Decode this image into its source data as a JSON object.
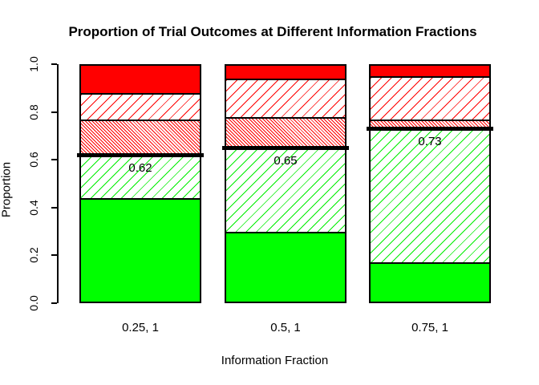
{
  "chart_data": {
    "type": "bar",
    "stacked": true,
    "title": "Proportion of Trial Outcomes at Different Information Fractions",
    "xlabel": "Information Fraction",
    "ylabel": "Proportion",
    "ylim": [
      0,
      1
    ],
    "yticks": [
      "0.0",
      "0.2",
      "0.4",
      "0.6",
      "0.8",
      "1.0"
    ],
    "grid": false,
    "legend": "none",
    "categories": [
      "0.25, 1",
      "0.5, 1",
      "0.75, 1"
    ],
    "series": [
      {
        "name": "solid-green-segment",
        "pattern": "solid",
        "color": "#00FF00",
        "values": [
          0.44,
          0.3,
          0.17
        ]
      },
      {
        "name": "green-hatch-segment",
        "pattern": "diag-up-sparse",
        "color": "#00EE00",
        "values": [
          0.18,
          0.35,
          0.56
        ]
      },
      {
        "name": "red-dense-hatch-segment",
        "pattern": "diag-down-dense",
        "color": "#FF0000",
        "values": [
          0.15,
          0.13,
          0.04
        ]
      },
      {
        "name": "red-hatch-segment",
        "pattern": "diag-up-sparse",
        "color": "#FF0000",
        "values": [
          0.11,
          0.16,
          0.18
        ]
      },
      {
        "name": "solid-red-segment",
        "pattern": "solid",
        "color": "#FF0000",
        "values": [
          0.12,
          0.06,
          0.05
        ]
      }
    ],
    "threshold_lines": {
      "color": "#000000",
      "values": [
        0.62,
        0.65,
        0.73
      ],
      "labels": [
        "0.62",
        "0.65",
        "0.73"
      ]
    },
    "colors": {
      "background": "#FFFFFF",
      "axis": "#000000",
      "text": "#000000",
      "green": "#00FF00",
      "red": "#FF0000"
    }
  }
}
